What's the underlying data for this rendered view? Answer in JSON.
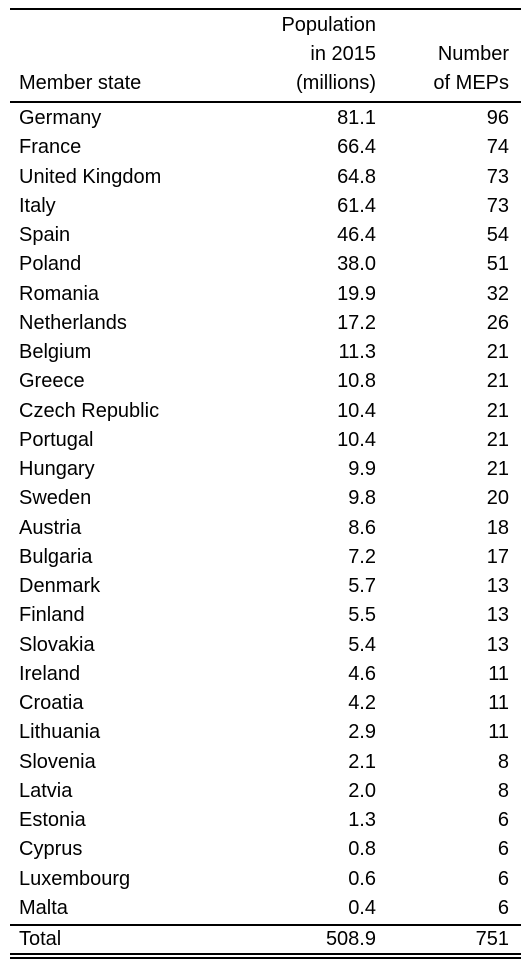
{
  "header": {
    "state": "Member state",
    "population": [
      "Population",
      "in 2015",
      "(millions)"
    ],
    "meps": [
      "Number",
      "of MEPs"
    ]
  },
  "rows": [
    {
      "state": "Germany",
      "population": "81.1",
      "meps": "96"
    },
    {
      "state": "France",
      "population": "66.4",
      "meps": "74"
    },
    {
      "state": "United Kingdom",
      "population": "64.8",
      "meps": "73"
    },
    {
      "state": "Italy",
      "population": "61.4",
      "meps": "73"
    },
    {
      "state": "Spain",
      "population": "46.4",
      "meps": "54"
    },
    {
      "state": "Poland",
      "population": "38.0",
      "meps": "51"
    },
    {
      "state": "Romania",
      "population": "19.9",
      "meps": "32"
    },
    {
      "state": "Netherlands",
      "population": "17.2",
      "meps": "26"
    },
    {
      "state": "Belgium",
      "population": "11.3",
      "meps": "21"
    },
    {
      "state": "Greece",
      "population": "10.8",
      "meps": "21"
    },
    {
      "state": "Czech Republic",
      "population": "10.4",
      "meps": "21"
    },
    {
      "state": "Portugal",
      "population": "10.4",
      "meps": "21"
    },
    {
      "state": "Hungary",
      "population": "9.9",
      "meps": "21"
    },
    {
      "state": "Sweden",
      "population": "9.8",
      "meps": "20"
    },
    {
      "state": "Austria",
      "population": "8.6",
      "meps": "18"
    },
    {
      "state": "Bulgaria",
      "population": "7.2",
      "meps": "17"
    },
    {
      "state": "Denmark",
      "population": "5.7",
      "meps": "13"
    },
    {
      "state": "Finland",
      "population": "5.5",
      "meps": "13"
    },
    {
      "state": "Slovakia",
      "population": "5.4",
      "meps": "13"
    },
    {
      "state": "Ireland",
      "population": "4.6",
      "meps": "11"
    },
    {
      "state": "Croatia",
      "population": "4.2",
      "meps": "11"
    },
    {
      "state": "Lithuania",
      "population": "2.9",
      "meps": "11"
    },
    {
      "state": "Slovenia",
      "population": "2.1",
      "meps": "8"
    },
    {
      "state": "Latvia",
      "population": "2.0",
      "meps": "8"
    },
    {
      "state": "Estonia",
      "population": "1.3",
      "meps": "6"
    },
    {
      "state": "Cyprus",
      "population": "0.8",
      "meps": "6"
    },
    {
      "state": "Luxembourg",
      "population": "0.6",
      "meps": "6"
    },
    {
      "state": "Malta",
      "population": "0.4",
      "meps": "6"
    }
  ],
  "total": {
    "label": "Total",
    "population": "508.9",
    "meps": "751"
  }
}
